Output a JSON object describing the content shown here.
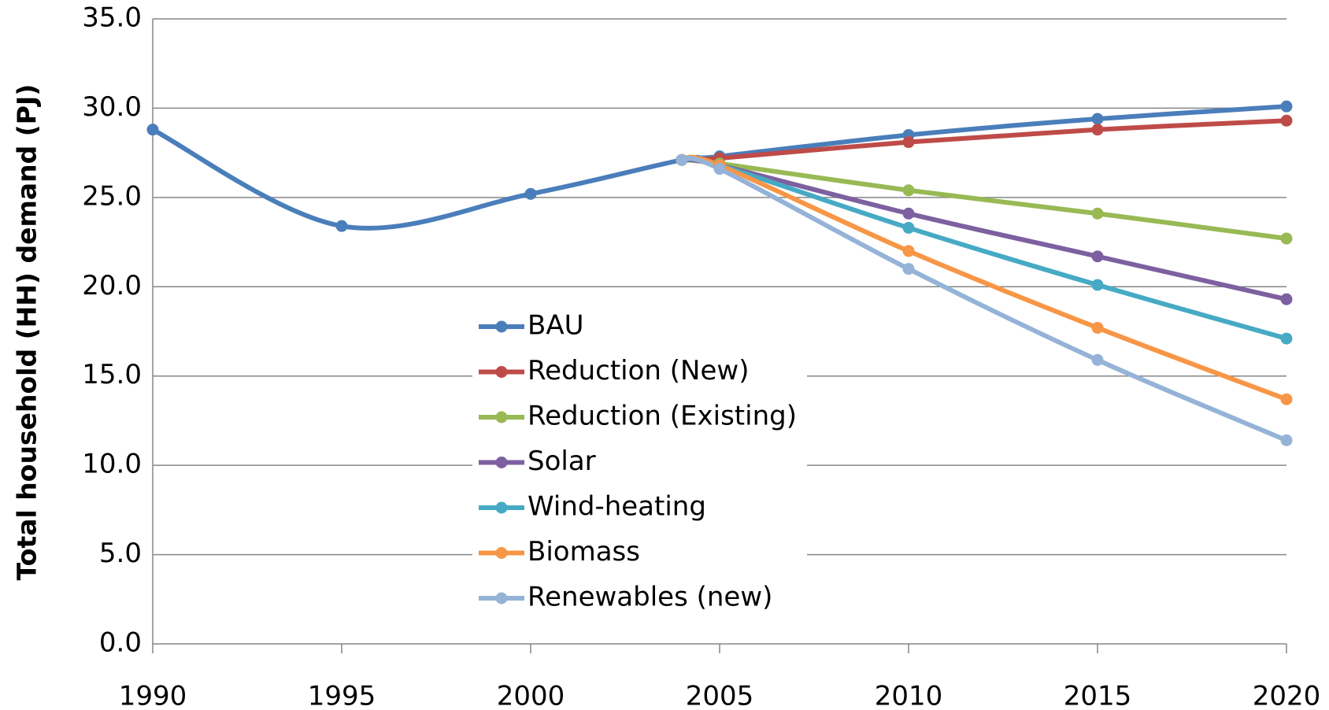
{
  "chart_data": {
    "type": "line",
    "y_label": "Total household (HH) demand (PJ)",
    "x": [
      1990,
      1995,
      2000,
      2004,
      2005,
      2010,
      2015,
      2020
    ],
    "series": [
      {
        "name": "BAU",
        "color": "#4a7ebb",
        "values": [
          28.8,
          23.4,
          25.2,
          27.1,
          27.3,
          28.5,
          29.4,
          30.1
        ]
      },
      {
        "name": "Reduction (New)",
        "color": "#be4b48",
        "values": [
          null,
          null,
          null,
          27.1,
          27.2,
          28.1,
          28.8,
          29.3
        ]
      },
      {
        "name": "Reduction (Existing)",
        "color": "#98b954",
        "values": [
          null,
          null,
          null,
          27.1,
          26.9,
          25.4,
          24.1,
          22.7
        ]
      },
      {
        "name": "Solar",
        "color": "#7d60a0",
        "values": [
          null,
          null,
          null,
          27.1,
          26.8,
          24.1,
          21.7,
          19.3
        ]
      },
      {
        "name": "Wind-heating",
        "color": "#46aac5",
        "values": [
          null,
          null,
          null,
          27.1,
          26.8,
          23.3,
          20.1,
          17.1
        ]
      },
      {
        "name": "Biomass",
        "color": "#f79646",
        "values": [
          null,
          null,
          null,
          27.1,
          26.8,
          22.0,
          17.7,
          13.7
        ]
      },
      {
        "name": "Renewables (new)",
        "color": "#95b3d7",
        "values": [
          null,
          null,
          null,
          27.1,
          26.6,
          21.0,
          15.9,
          11.4
        ]
      }
    ],
    "xlim": [
      1990,
      2020
    ],
    "xticks": [
      1990,
      1995,
      2000,
      2005,
      2010,
      2015,
      2020
    ],
    "ylim": [
      0,
      35
    ],
    "yticks": [
      {
        "value": 0,
        "label": "0.0"
      },
      {
        "value": 5,
        "label": "5.0"
      },
      {
        "value": 10,
        "label": "10.0"
      },
      {
        "value": 15,
        "label": "15.0"
      },
      {
        "value": 20,
        "label": "20.0"
      },
      {
        "value": 25,
        "label": "25.0"
      },
      {
        "value": 30,
        "label": "30.0"
      },
      {
        "value": 35,
        "label": "35.0"
      }
    ],
    "grid": true,
    "smooth": true,
    "legend": "center"
  }
}
